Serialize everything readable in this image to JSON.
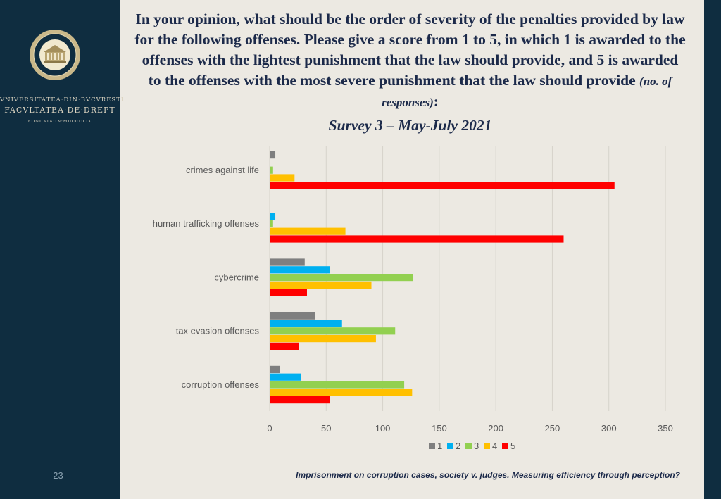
{
  "sidebar": {
    "logo_text": "UNIVERSITATEA DIN BUCURESTI · FACULTATEA DE DREPT",
    "university_name": "VNIVERSITATEA·DIN·BVCVRESTI",
    "faculty_name": "FACVLTATEA·DE·DREPT",
    "founded": "FONDATA·IN·MDCCCLIX",
    "founded_sub": "",
    "page_number": "23"
  },
  "title": {
    "main": "In your opinion, what should be the order of severity of the penalties provided by law for the following offenses. Please give a score from 1 to 5, in which 1 is awarded to the offenses with the lightest punishment that the law should provide, and 5 is awarded to the offenses with the most severe punishment that the law should provide ",
    "note": "(no. of responses)",
    "colon": ":",
    "subtitle": "Survey 3 – May-July 2021"
  },
  "footer": {
    "caption": "Imprisonment on corruption cases, society v. judges. Measuring efficiency through perception?"
  },
  "colors": {
    "sidebar_bg": "#0f2d40",
    "page_bg": "#ece9e2",
    "title_text": "#1c2a4a"
  },
  "chart_data": {
    "type": "bar",
    "orientation": "horizontal",
    "categories": [
      "crimes against life",
      "human trafficking offenses",
      "cybercrime",
      "tax evasion offenses",
      "corruption offenses"
    ],
    "series": [
      {
        "name": "1",
        "color": "#7f7f7f",
        "values": [
          5,
          0,
          31,
          40,
          9
        ]
      },
      {
        "name": "2",
        "color": "#00b0f0",
        "values": [
          0,
          5,
          53,
          64,
          28
        ]
      },
      {
        "name": "3",
        "color": "#92d050",
        "values": [
          3,
          3,
          127,
          111,
          119
        ]
      },
      {
        "name": "4",
        "color": "#ffc000",
        "values": [
          22,
          67,
          90,
          94,
          126
        ]
      },
      {
        "name": "5",
        "color": "#ff0000",
        "values": [
          305,
          260,
          33,
          26,
          53
        ]
      }
    ],
    "xlim": [
      0,
      350
    ],
    "xticks": [
      0,
      50,
      100,
      150,
      200,
      250,
      300,
      350
    ],
    "grid": "vertical",
    "legend_position": "bottom"
  }
}
